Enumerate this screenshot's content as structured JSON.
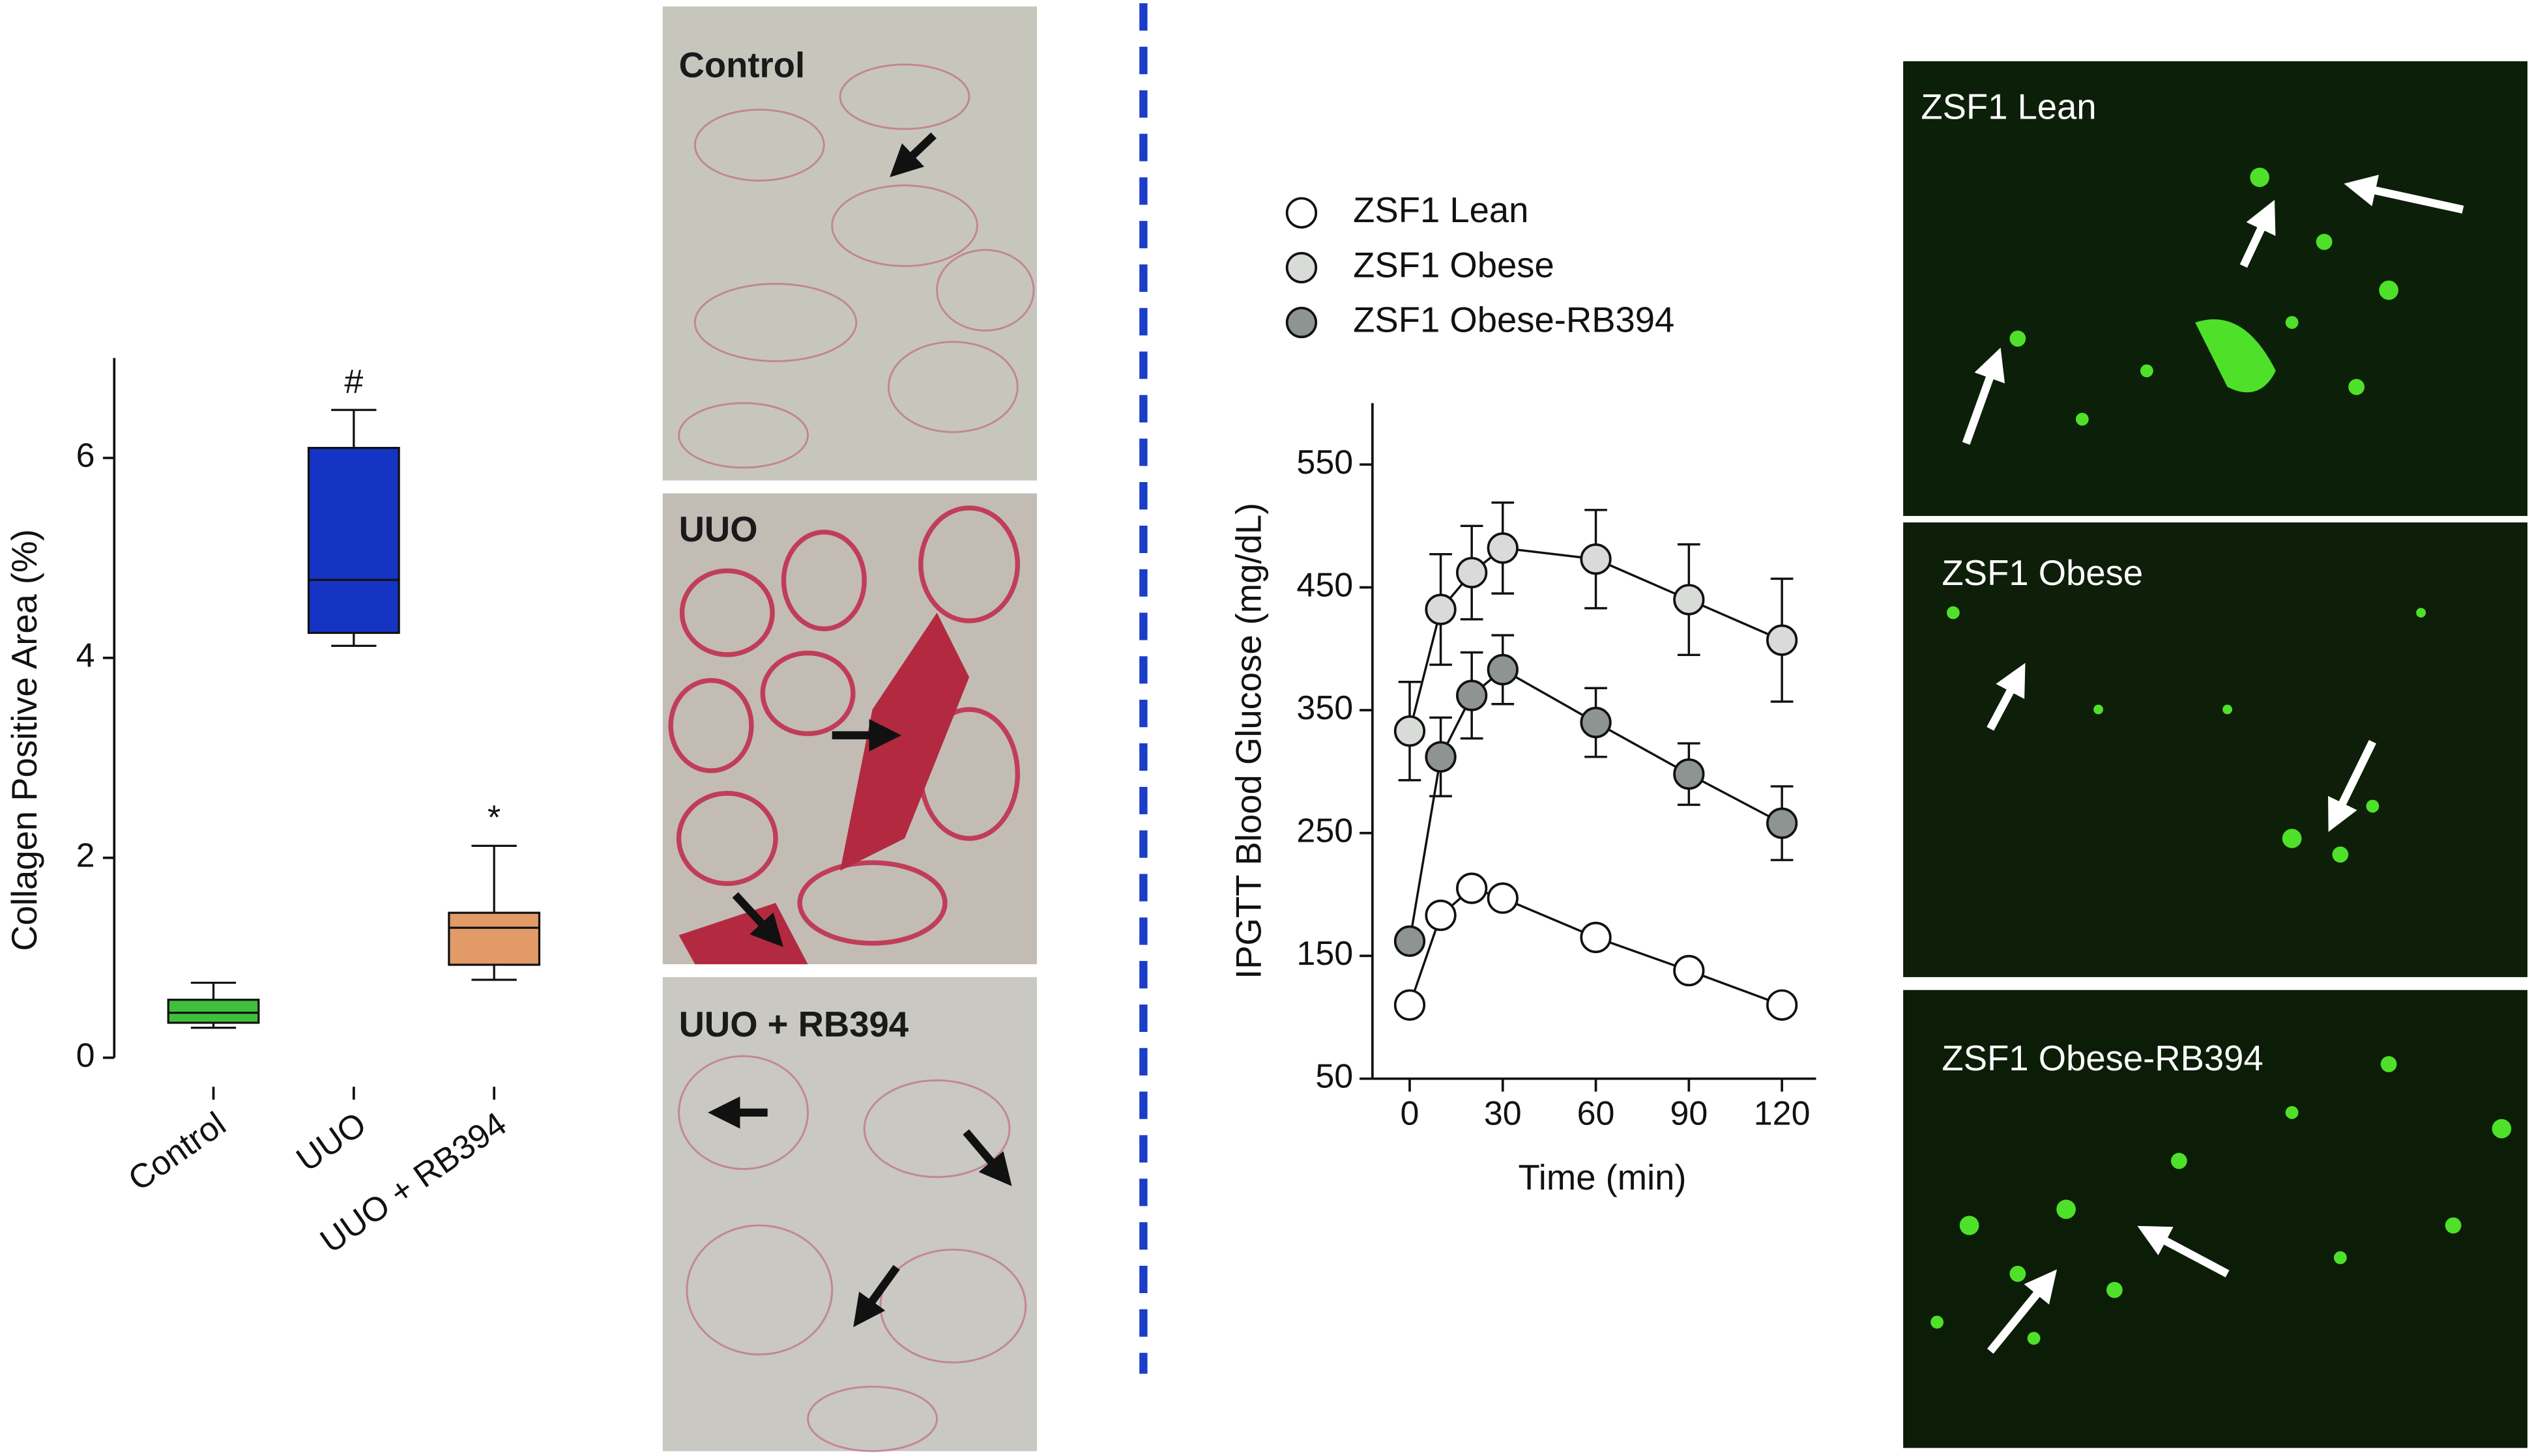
{
  "chart_data": [
    {
      "type": "box",
      "y_label": "Collagen Positive Area (%)",
      "categories": [
        "Control",
        "UUO",
        "UUO + RB394"
      ],
      "colors": [
        "#3fbf3a",
        "#1534c4",
        "#e29b67"
      ],
      "boxes": [
        {
          "min": 0.3,
          "q1": 0.35,
          "median": 0.45,
          "q3": 0.58,
          "max": 0.75
        },
        {
          "min": 4.12,
          "q1": 4.25,
          "median": 4.78,
          "q3": 6.1,
          "max": 6.48
        },
        {
          "min": 0.78,
          "q1": 0.93,
          "median": 1.3,
          "q3": 1.45,
          "max": 2.12
        }
      ],
      "annotations": [
        {
          "text": "#",
          "category": "UUO"
        },
        {
          "text": "*",
          "category": "UUO + RB394"
        }
      ],
      "ylim": [
        0,
        7
      ],
      "yticks": [
        0,
        2,
        4,
        6
      ]
    },
    {
      "type": "line",
      "x_label": "Time (min)",
      "y_label": "IPGTT Blood Glucose (mg/dL)",
      "x": [
        0,
        10,
        20,
        30,
        60,
        90,
        120
      ],
      "series": [
        {
          "name": "ZSF1 Lean",
          "color": "#ffffff",
          "values": [
            110,
            183,
            205,
            197,
            165,
            138,
            110
          ]
        },
        {
          "name": "ZSF1 Obese",
          "color": "#d8dbd8",
          "values": [
            333,
            432,
            462,
            482,
            473,
            440,
            407
          ],
          "errors": [
            40,
            45,
            38,
            37,
            40,
            45,
            50
          ]
        },
        {
          "name": "ZSF1 Obese-RB394",
          "color": "#8e9492",
          "values": [
            162,
            312,
            362,
            383,
            340,
            298,
            258
          ],
          "errors": [
            null,
            32,
            35,
            28,
            28,
            25,
            30
          ]
        }
      ],
      "xlim": [
        -12,
        131
      ],
      "xticks": [
        0,
        30,
        60,
        90,
        120
      ],
      "ylim": [
        50,
        600
      ],
      "yticks": [
        50,
        150,
        250,
        350,
        450,
        550
      ]
    }
  ],
  "histology_panels": [
    "Control",
    "UUO",
    "UUO + RB394"
  ],
  "fluorescence_panels": [
    "ZSF1 Lean",
    "ZSF1 Obese",
    "ZSF1 Obese-RB394"
  ]
}
